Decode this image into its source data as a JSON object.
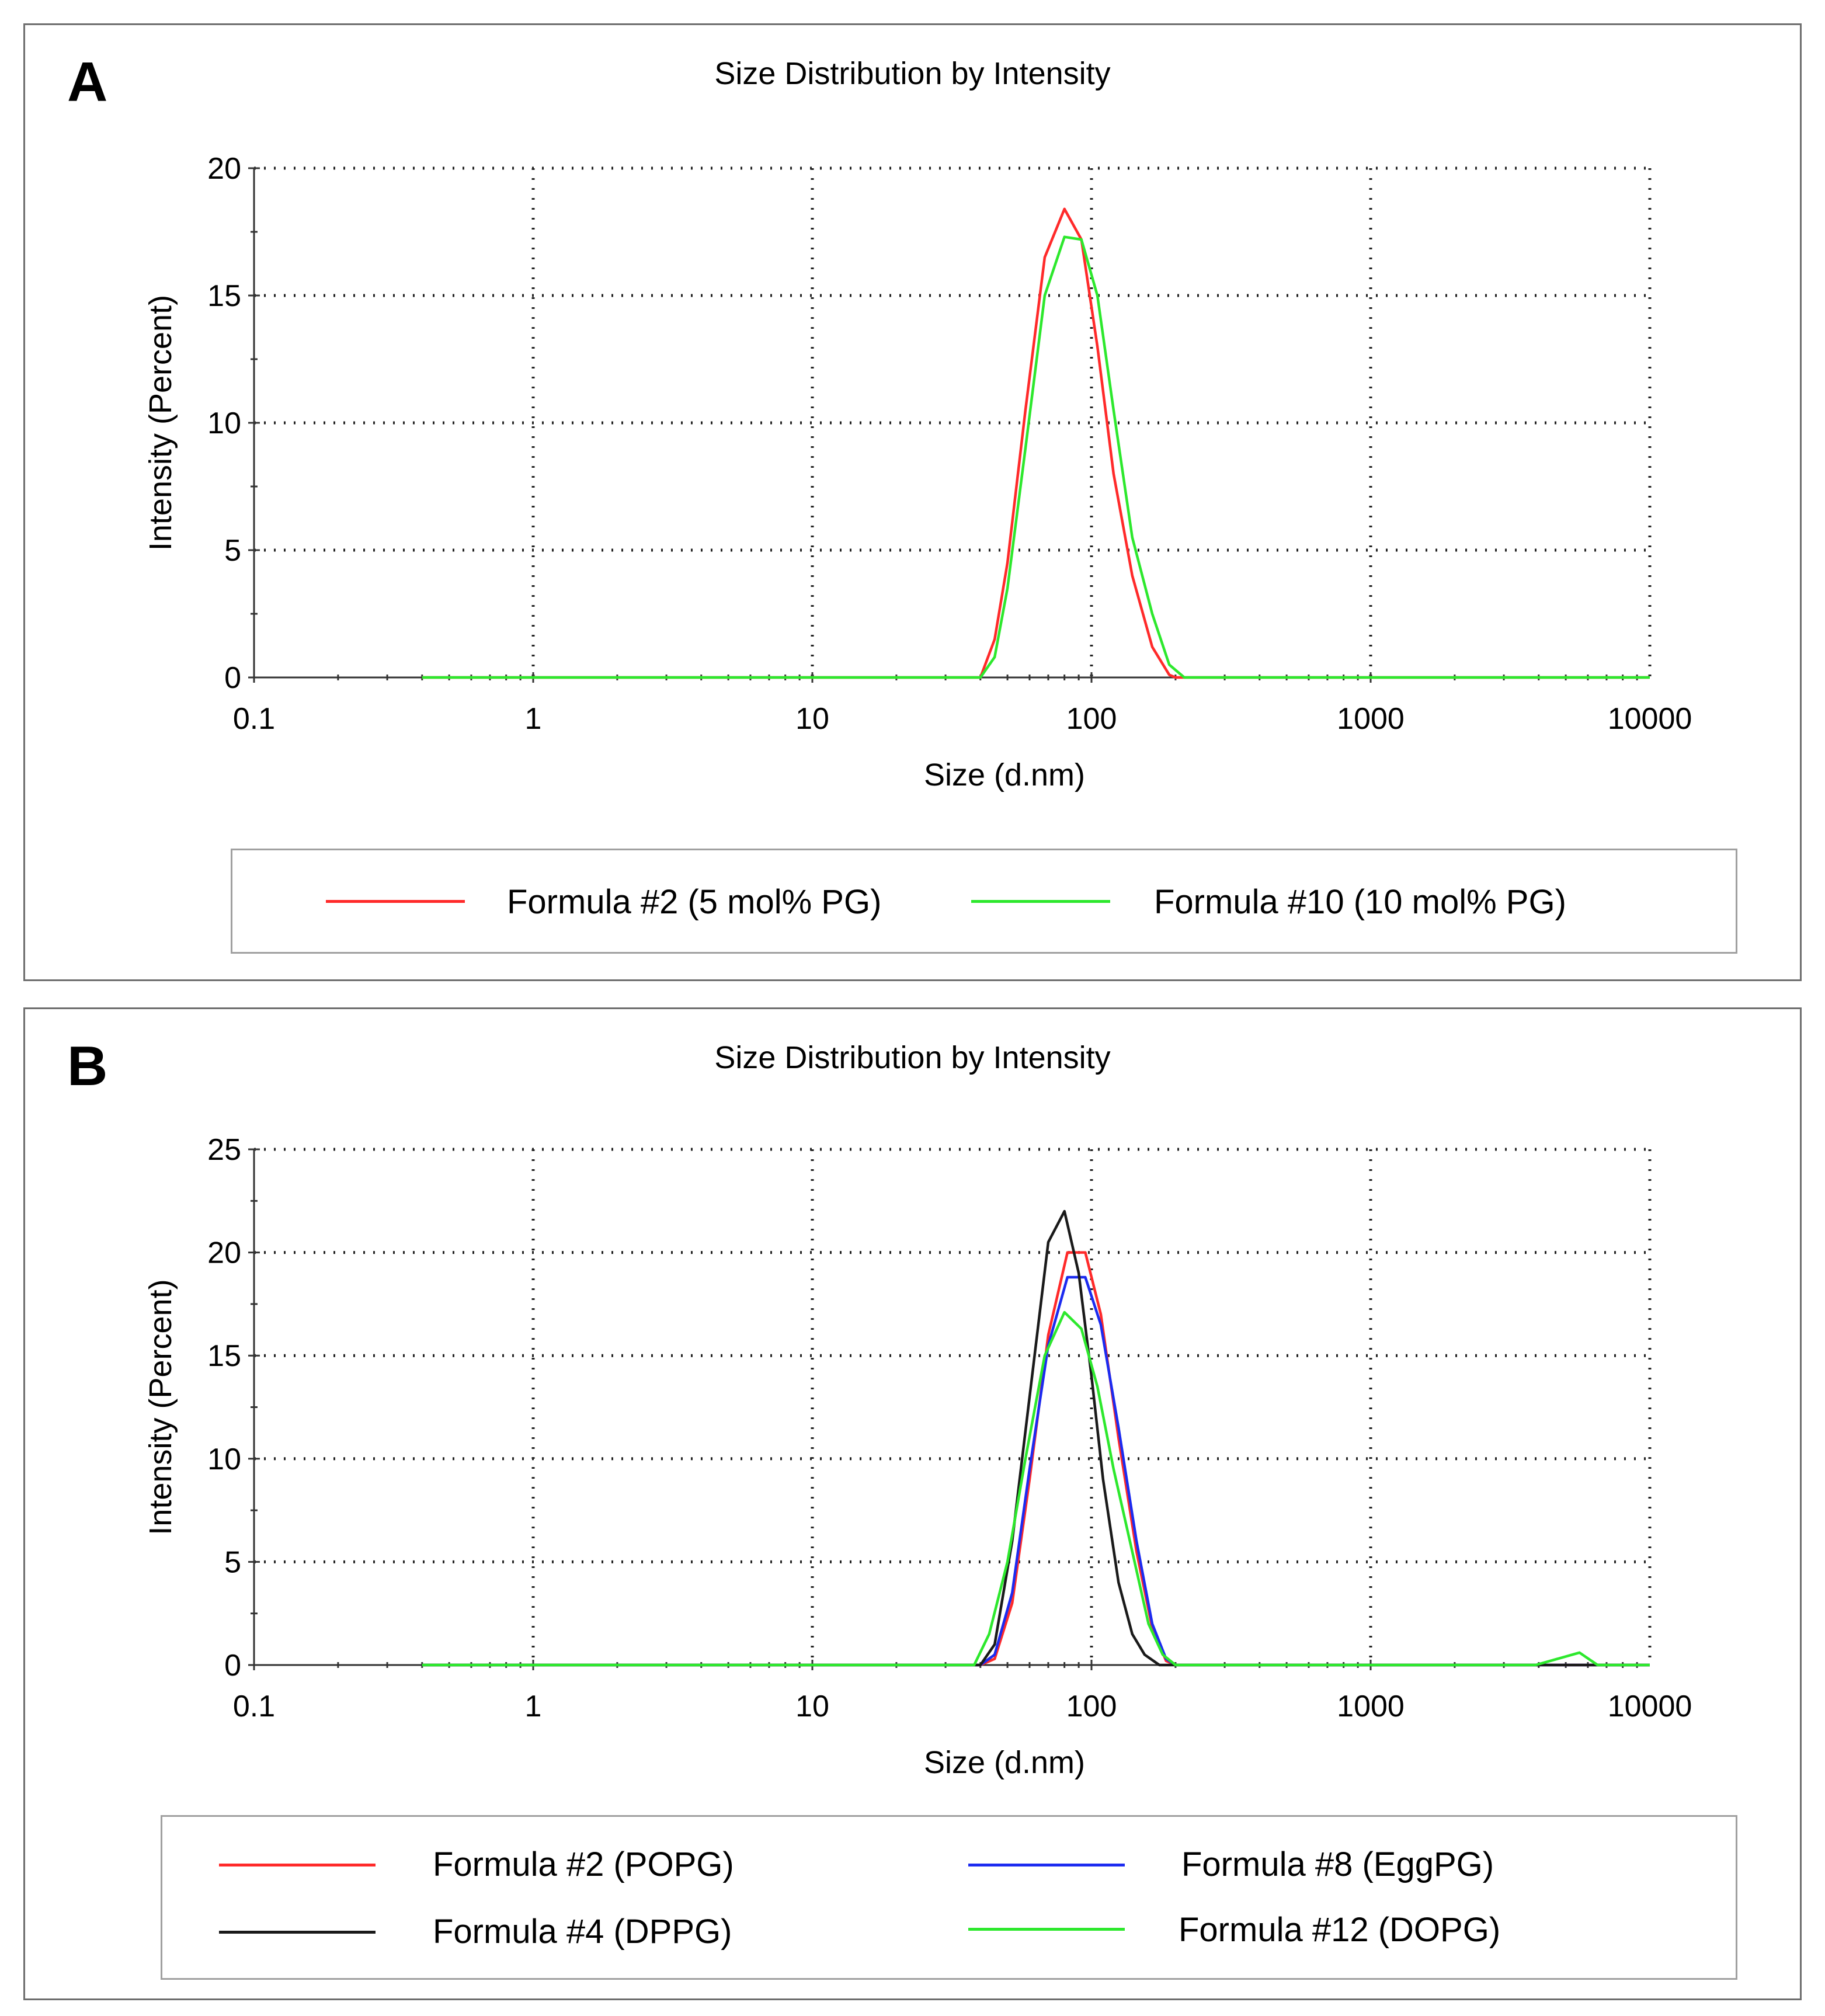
{
  "panels": [
    {
      "letter": "A",
      "chart_data": {
        "type": "line",
        "title": "Size Distribution by Intensity",
        "xlabel": "Size (d.nm)",
        "ylabel": "Intensity (Percent)",
        "xscale": "log",
        "xlim": [
          0.1,
          10000
        ],
        "ylim": [
          0,
          20
        ],
        "xticks": [
          "0.1",
          "1",
          "10",
          "100",
          "1000",
          "10000"
        ],
        "yticks": [
          "0",
          "5",
          "10",
          "15",
          "20"
        ],
        "grid": true,
        "legend_position": "bottom",
        "series": [
          {
            "name": "Formula #2 (5 mol% PG)",
            "color": "#ff2a2a",
            "x": [
              0.4,
              40,
              45,
              50,
              58,
              68,
              80,
              92,
              105,
              120,
              140,
              165,
              190,
              200,
              10000
            ],
            "y": [
              0,
              0,
              1.5,
              4.5,
              10.5,
              16.5,
              18.4,
              17.2,
              13.0,
              8.0,
              4.0,
              1.2,
              0.1,
              0,
              0
            ]
          },
          {
            "name": "Formula #10 (10 mol% PG)",
            "color": "#2de82d",
            "x": [
              0.4,
              40,
              45,
              50,
              58,
              68,
              80,
              92,
              105,
              120,
              140,
              165,
              190,
              215,
              10000
            ],
            "y": [
              0,
              0,
              0.8,
              3.5,
              9.0,
              15.0,
              17.3,
              17.2,
              15.0,
              10.5,
              5.5,
              2.5,
              0.5,
              0,
              0
            ]
          }
        ]
      }
    },
    {
      "letter": "B",
      "chart_data": {
        "type": "line",
        "title": "Size Distribution by Intensity",
        "xlabel": "Size (d.nm)",
        "ylabel": "Intensity (Percent)",
        "xscale": "log",
        "xlim": [
          0.1,
          10000
        ],
        "ylim": [
          0,
          25
        ],
        "xticks": [
          "0.1",
          "1",
          "10",
          "100",
          "1000",
          "10000"
        ],
        "yticks": [
          "0",
          "5",
          "10",
          "15",
          "20",
          "25"
        ],
        "grid": true,
        "legend_position": "bottom",
        "series": [
          {
            "name": "Formula #2 (POPG)",
            "color": "#ff2a2a",
            "x": [
              0.4,
              40,
              45,
              52,
              60,
              70,
              82,
              95,
              108,
              125,
              145,
              165,
              185,
              200,
              10000
            ],
            "y": [
              0,
              0,
              0.3,
              3.0,
              9.0,
              16.0,
              20.0,
              20.0,
              17.0,
              11.0,
              5.5,
              1.8,
              0.2,
              0,
              0
            ]
          },
          {
            "name": "Formula #8 (EggPG)",
            "color": "#1c2bf0",
            "x": [
              0.4,
              40,
              45,
              52,
              60,
              70,
              82,
              95,
              108,
              125,
              145,
              165,
              185,
              200,
              10000
            ],
            "y": [
              0,
              0,
              0.5,
              3.5,
              9.5,
              15.5,
              18.8,
              18.8,
              16.5,
              11.5,
              6.0,
              2.0,
              0.3,
              0,
              0
            ]
          },
          {
            "name": "Formula #4 (DPPG)",
            "color": "#1a1a1a",
            "x": [
              0.4,
              40,
              45,
              52,
              60,
              70,
              80,
              90,
              100,
              110,
              125,
              140,
              155,
              175,
              10000
            ],
            "y": [
              0,
              0,
              1.0,
              6.0,
              13.0,
              20.5,
              22.0,
              19.0,
              14.0,
              9.0,
              4.0,
              1.5,
              0.5,
              0,
              0
            ]
          },
          {
            "name": "Formula #12 (DOPG)",
            "color": "#2de82d",
            "x": [
              0.4,
              38,
              43,
              50,
              58,
              68,
              80,
              92,
              105,
              120,
              140,
              160,
              180,
              200,
              3900,
              5600,
              6500,
              10000
            ],
            "y": [
              0,
              0,
              1.5,
              5.0,
              10.0,
              15.0,
              17.1,
              16.3,
              13.5,
              9.5,
              5.5,
              2.0,
              0.5,
              0,
              0,
              0.6,
              0,
              0
            ]
          }
        ]
      }
    }
  ],
  "legend_a": [
    {
      "label": "Formula #2 (5 mol% PG)",
      "color": "#ff2a2a"
    },
    {
      "label": "Formula #10 (10 mol% PG)",
      "color": "#2de82d"
    }
  ],
  "legend_b": [
    {
      "label": "Formula #2 (POPG)",
      "color": "#ff2a2a"
    },
    {
      "label": "Formula #8 (EggPG)",
      "color": "#1c2bf0"
    },
    {
      "label": "Formula #4 (DPPG)",
      "color": "#1a1a1a"
    },
    {
      "label": "Formula #12 (DOPG)",
      "color": "#2de82d"
    }
  ]
}
